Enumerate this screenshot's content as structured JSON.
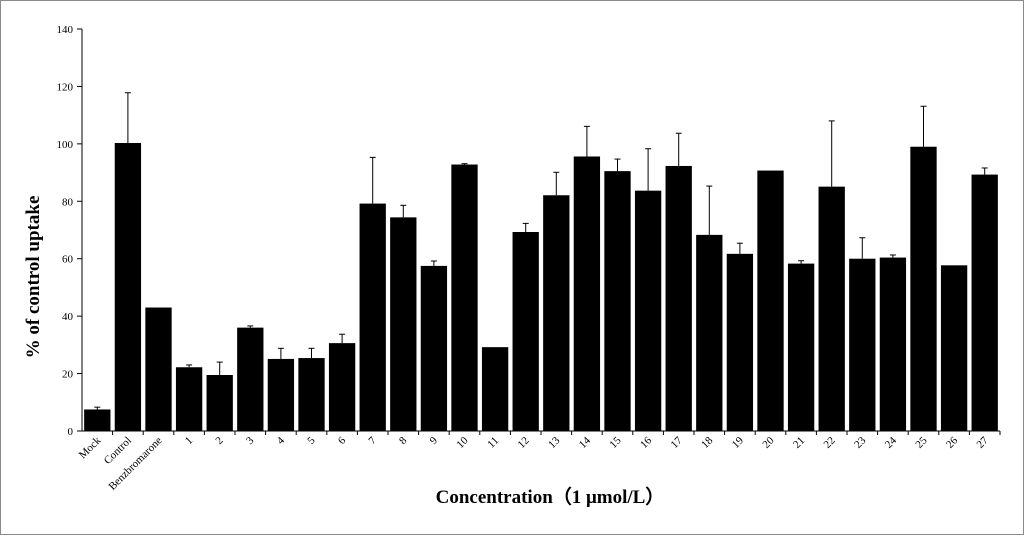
{
  "chart_data": {
    "type": "bar",
    "title": "",
    "xlabel": "Concentration（1 μmol/L）",
    "ylabel": "% of control uptake",
    "ylim": [
      0,
      140
    ],
    "yticks": [
      0,
      20,
      40,
      60,
      80,
      100,
      120,
      140
    ],
    "grid": false,
    "legend": "none",
    "bar_color": "#000000",
    "categories": [
      "Mock",
      "Control",
      "Benzbromarone",
      "1",
      "2",
      "3",
      "4",
      "5",
      "6",
      "7",
      "8",
      "9",
      "10",
      "11",
      "12",
      "13",
      "14",
      "15",
      "16",
      "17",
      "18",
      "19",
      "20",
      "21",
      "22",
      "23",
      "24",
      "25",
      "26",
      "27"
    ],
    "series": [
      {
        "values": [
          7.5,
          100.3,
          43,
          22.2,
          19.5,
          36,
          25.1,
          25.4,
          30.6,
          79.2,
          74.4,
          57.5,
          92.8,
          29.2,
          69.3,
          82.1,
          95.6,
          90.5,
          83.7,
          92.3,
          68.3,
          61.7,
          90.7,
          58.3,
          85.1,
          60,
          60.4,
          99,
          57.7,
          89.3
        ],
        "errors": [
          0.8,
          17.5,
          0,
          0.8,
          4.5,
          0.6,
          3.7,
          3.4,
          3.1,
          16.1,
          4.2,
          1.7,
          0.3,
          0,
          3,
          8,
          10.5,
          4.2,
          14.6,
          11.4,
          17,
          3.7,
          0,
          1,
          22.9,
          7.3,
          0.9,
          14.1,
          0,
          2.3
        ]
      }
    ]
  }
}
